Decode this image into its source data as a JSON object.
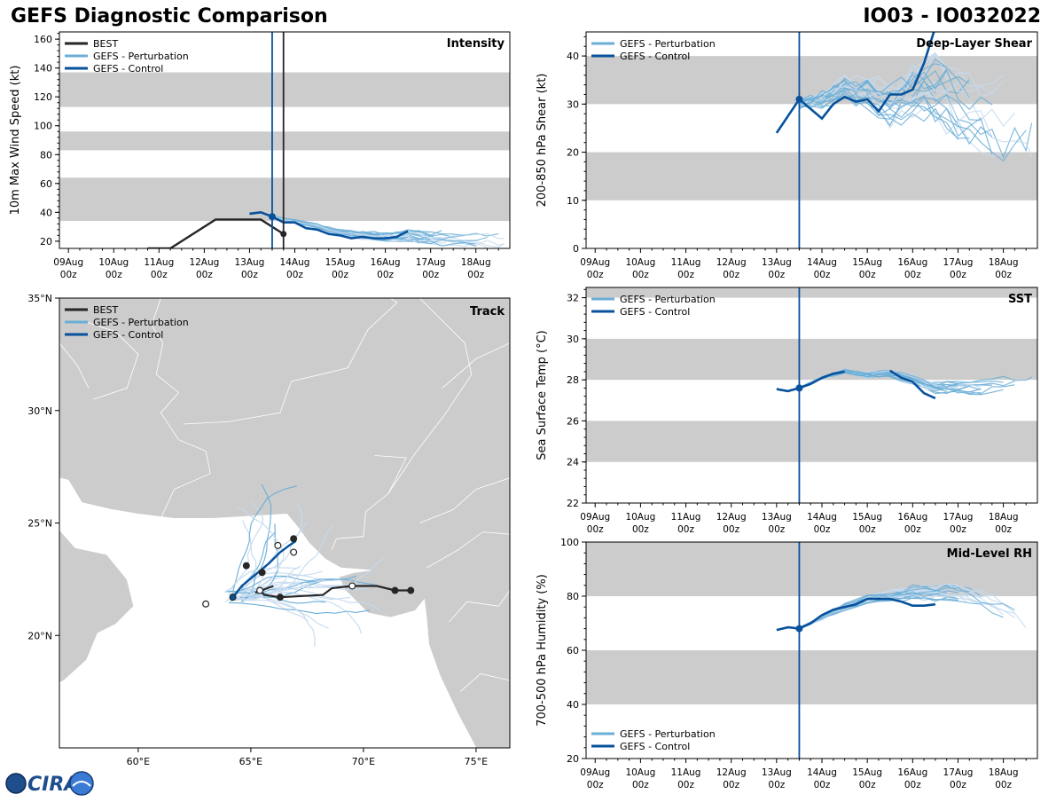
{
  "header": {
    "title": "GEFS Diagnostic Comparison",
    "storm_id": "IO03 - IO032022"
  },
  "colors": {
    "best": "#262626",
    "perturbation": "#6baed6",
    "control": "#08519c",
    "band": "#cccccc",
    "land": "#cccccc",
    "ocean": "#ffffff",
    "init_line": "#08519c"
  },
  "logo": {
    "text": "CIRA"
  },
  "legend": {
    "best": "BEST",
    "perturbation": "GEFS - Perturbation",
    "control": "GEFS - Control"
  },
  "time_axis": {
    "ticks": [
      {
        "day": 9,
        "l1": "09Aug",
        "l2": "00z"
      },
      {
        "day": 10,
        "l1": "10Aug",
        "l2": "00z"
      },
      {
        "day": 11,
        "l1": "11Aug",
        "l2": "00z"
      },
      {
        "day": 12,
        "l1": "12Aug",
        "l2": "00z"
      },
      {
        "day": 13,
        "l1": "13Aug",
        "l2": "00z"
      },
      {
        "day": 14,
        "l1": "14Aug",
        "l2": "00z"
      },
      {
        "day": 15,
        "l1": "15Aug",
        "l2": "00z"
      },
      {
        "day": 16,
        "l1": "16Aug",
        "l2": "00z"
      },
      {
        "day": 17,
        "l1": "17Aug",
        "l2": "00z"
      },
      {
        "day": 18,
        "l1": "18Aug",
        "l2": "00z"
      }
    ],
    "xlim": [
      8.8,
      18.75
    ],
    "init_time": 13.5
  },
  "chart_data": [
    {
      "id": "intensity",
      "type": "line",
      "title": "Intensity",
      "ylabel": "10m Max Wind Speed (kt)",
      "ylim": [
        15,
        165
      ],
      "yticks": [
        20,
        40,
        60,
        80,
        100,
        120,
        140,
        160
      ],
      "bands": [
        [
          34,
          64
        ],
        [
          83,
          96
        ],
        [
          113,
          137
        ]
      ],
      "best_end_line": 13.75,
      "best": {
        "x": [
          10.75,
          11.25,
          12.25,
          13.25,
          13.5,
          13.75
        ],
        "y": [
          15,
          15,
          35,
          35,
          30,
          25
        ]
      },
      "control": {
        "x": [
          13.0,
          13.25,
          13.5,
          13.75,
          14.0,
          14.25,
          14.5,
          14.75,
          15.0,
          15.25,
          15.5,
          15.75,
          16.0,
          16.25,
          16.5
        ],
        "y": [
          39,
          40,
          37,
          33,
          33,
          29,
          28,
          25,
          24,
          22,
          23,
          22,
          22,
          23,
          27
        ]
      },
      "ens_base": {
        "x": [
          13.5,
          14.0,
          14.5,
          15.0,
          15.5,
          16.0,
          16.5,
          17.0,
          17.5,
          18.0,
          18.5,
          18.75
        ],
        "y": [
          37,
          34,
          30,
          26,
          24,
          23,
          24,
          22,
          22,
          21,
          21,
          21
        ]
      },
      "ens_amp": 4,
      "ens_count": 24
    },
    {
      "id": "shear",
      "type": "line",
      "title": "Deep-Layer Shear",
      "ylabel": "200-850 hPa Shear (kt)",
      "ylim": [
        0,
        45
      ],
      "yticks": [
        0,
        10,
        20,
        30,
        40
      ],
      "bands": [
        [
          10,
          20
        ],
        [
          30,
          40
        ]
      ],
      "control": {
        "x": [
          13.0,
          13.5,
          13.75,
          14.0,
          14.25,
          14.5,
          14.75,
          15.0,
          15.25,
          15.5,
          15.75,
          16.0,
          16.25,
          16.5
        ],
        "y": [
          24,
          31,
          29,
          27,
          30,
          31.5,
          30.5,
          31,
          28.5,
          32,
          32,
          33,
          38.5,
          46
        ]
      },
      "ens_base": {
        "x": [
          13.5,
          14.0,
          14.5,
          15.0,
          15.5,
          16.0,
          16.5,
          17.0,
          17.5,
          18.0,
          18.5,
          18.75
        ],
        "y": [
          30,
          31,
          33,
          32,
          30,
          32,
          33,
          30,
          28,
          26,
          27,
          25
        ]
      },
      "ens_amp": 7,
      "ens_count": 24
    },
    {
      "id": "sst",
      "type": "line",
      "title": "SST",
      "ylabel": "Sea Surface Temp (°C)",
      "ylim": [
        22,
        32.5
      ],
      "yticks": [
        22,
        24,
        26,
        28,
        30,
        32
      ],
      "bands": [
        [
          24,
          26
        ],
        [
          28,
          30
        ],
        [
          32,
          34
        ]
      ],
      "control": {
        "x": [
          13.0,
          13.25,
          13.5,
          13.75,
          14.0,
          14.25,
          14.5
        ],
        "y": [
          27.55,
          27.45,
          27.6,
          27.8,
          28.1,
          28.3,
          28.4
        ]
      },
      "control2": {
        "x": [
          15.5,
          15.75,
          16.0,
          16.25,
          16.5
        ],
        "y": [
          28.45,
          28.1,
          27.9,
          27.35,
          27.1
        ]
      },
      "ens_base": {
        "x": [
          13.5,
          14.0,
          14.5,
          15.0,
          15.5,
          16.0,
          16.5,
          17.0,
          17.5,
          18.0,
          18.5,
          18.75
        ],
        "y": [
          27.6,
          28.1,
          28.4,
          28.2,
          28.3,
          28.0,
          27.6,
          27.6,
          27.6,
          27.7,
          27.8,
          27.6
        ]
      },
      "ens_amp": 0.3,
      "ens_count": 20
    },
    {
      "id": "rh",
      "type": "line",
      "title": "Mid-Level RH",
      "ylabel": "700-500 hPa Humidity (%)",
      "ylim": [
        20,
        100
      ],
      "yticks": [
        20,
        40,
        60,
        80,
        100
      ],
      "bands": [
        [
          40,
          60
        ],
        [
          80,
          100
        ]
      ],
      "control": {
        "x": [
          13.0,
          13.25,
          13.5,
          13.75,
          14.0,
          14.25,
          14.5,
          14.75,
          15.0,
          15.25,
          15.5,
          15.75,
          16.0,
          16.25,
          16.5
        ],
        "y": [
          67.5,
          68.5,
          68,
          70,
          73,
          75,
          76,
          77,
          79,
          79,
          79,
          78,
          76.5,
          76.5,
          77
        ]
      },
      "ens_base": {
        "x": [
          13.5,
          14.0,
          14.5,
          15.0,
          15.5,
          16.0,
          16.5,
          17.0,
          17.5,
          18.0,
          18.5,
          18.75
        ],
        "y": [
          68,
          72,
          76,
          79,
          80,
          81,
          81,
          81,
          78,
          74,
          70,
          67
        ]
      },
      "ens_amp": 3,
      "ens_count": 24
    },
    {
      "id": "track",
      "type": "map",
      "title": "Track",
      "lon_range": [
        56.5,
        76.5
      ],
      "lat_range": [
        15,
        35
      ],
      "lon_ticks": [
        60,
        65,
        70,
        75
      ],
      "lon_labels": [
        "60°E",
        "65°E",
        "70°E",
        "75°E"
      ],
      "lat_ticks": [
        20,
        25,
        30,
        35
      ],
      "lat_labels": [
        "20°N",
        "25°N",
        "30°N",
        "35°N"
      ],
      "best": {
        "lon": [
          72.1,
          71.4,
          70.6,
          69.5,
          68.6,
          68.2,
          66.3,
          65.6,
          65.4,
          65.2,
          66.0
        ],
        "lat": [
          22.0,
          22.0,
          22.2,
          22.2,
          22.1,
          21.8,
          21.7,
          21.8,
          22.0,
          21.9,
          22.2
        ]
      },
      "best_markers": [
        {
          "lon": 72.1,
          "lat": 22.0,
          "filled": true
        },
        {
          "lon": 71.4,
          "lat": 22.0,
          "filled": true
        },
        {
          "lon": 69.5,
          "lat": 22.2,
          "filled": false
        },
        {
          "lon": 66.3,
          "lat": 21.7,
          "filled": true
        },
        {
          "lon": 65.4,
          "lat": 22.0,
          "filled": false
        }
      ],
      "control": {
        "lon": [
          64.2,
          64.6,
          65.2,
          65.8,
          66.3,
          66.7,
          67.0
        ],
        "lat": [
          21.7,
          22.2,
          22.7,
          23.2,
          23.7,
          24.0,
          24.2
        ]
      },
      "control_markers": [
        {
          "lon": 64.2,
          "lat": 21.7,
          "filled": true
        },
        {
          "lon": 64.8,
          "lat": 23.1,
          "filled": true
        },
        {
          "lon": 65.5,
          "lat": 22.8,
          "filled": true
        },
        {
          "lon": 66.2,
          "lat": 24.0,
          "filled": false
        },
        {
          "lon": 66.9,
          "lat": 23.7,
          "filled": false
        },
        {
          "lon": 63.0,
          "lat": 21.4,
          "filled": false
        },
        {
          "lon": 66.9,
          "lat": 24.3,
          "filled": true
        }
      ],
      "ens_start": {
        "lon": 64.2,
        "lat": 21.7
      },
      "ens_count": 30
    }
  ]
}
